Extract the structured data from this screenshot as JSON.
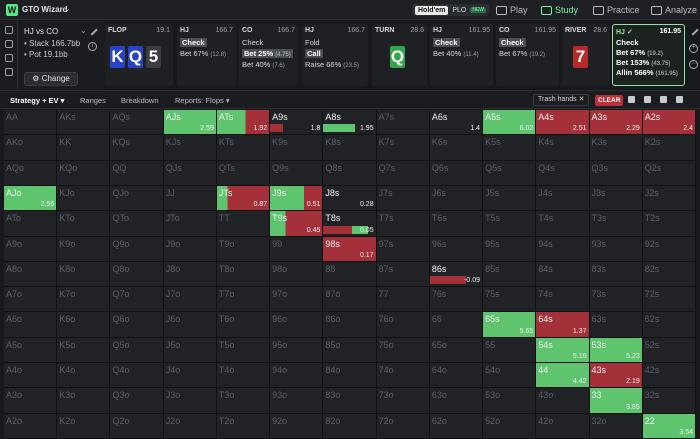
{
  "app": {
    "brand": "GTO Wizard"
  },
  "top_nav": {
    "game_modes": [
      "Hold'em",
      "PLO"
    ],
    "new_badge": "NEW",
    "tabs": [
      {
        "label": "Play",
        "active": false
      },
      {
        "label": "Study",
        "active": true
      },
      {
        "label": "Practice",
        "active": false
      },
      {
        "label": "Analyze",
        "active": false
      }
    ]
  },
  "spot": {
    "title": "HJ vs CO",
    "stack": "• Stack 166.7bb",
    "pot": "• Pot 19.1bb",
    "change_label": "Change"
  },
  "actions": {
    "flop": {
      "label": "FLOP",
      "pot": "19.1",
      "cards": [
        "K",
        "Q",
        "5"
      ]
    },
    "hj1": {
      "pos": "HJ",
      "stack": "166.7",
      "items": [
        [
          "Check",
          ""
        ],
        [
          "Bet 67%",
          "(12.8)"
        ]
      ]
    },
    "co1": {
      "pos": "CO",
      "stack": "166.7",
      "items": [
        [
          "Check",
          ""
        ],
        [
          "Bet 25%",
          "(4.75)"
        ],
        [
          "Bet 40%",
          "(7.6)"
        ]
      ]
    },
    "hj2": {
      "pos": "HJ",
      "stack": "166.7",
      "items": [
        [
          "Fold",
          ""
        ],
        [
          "Call",
          ""
        ],
        [
          "Raise 66%",
          "(23.5)"
        ]
      ]
    },
    "turn": {
      "label": "TURN",
      "pot": "28.6",
      "card": "Q"
    },
    "hj3": {
      "pos": "HJ",
      "stack": "161.95",
      "items": [
        [
          "Check",
          ""
        ],
        [
          "Bet 40%",
          "(11.4)"
        ]
      ]
    },
    "co2": {
      "pos": "CO",
      "stack": "161.95",
      "items": [
        [
          "Check",
          ""
        ],
        [
          "Bet 67%",
          "(19.2)"
        ]
      ]
    },
    "river": {
      "label": "RIVER",
      "pot": "28.6",
      "card": "7"
    },
    "hj4": {
      "pos": "HJ ✓",
      "stack": "161.95",
      "items": [
        [
          "Check",
          ""
        ],
        [
          "Bet 67%",
          "(19.2)"
        ],
        [
          "Bet 153%",
          "(43.75)"
        ],
        [
          "Allin 566%",
          "(161.95)"
        ]
      ]
    }
  },
  "tabs": {
    "strategy": "Strategy + EV ▾",
    "ranges": "Ranges",
    "breakdown": "Breakdown",
    "reports": "Reports: Flops ▾",
    "trash": "Trash hands  ✕",
    "clear": "CLEAR"
  },
  "colors": {
    "accent": "#7ef0a8",
    "green": "#5ec46e",
    "red": "#a4303a",
    "card_blue": "#2744c8",
    "card_green": "#2fa84a",
    "card_red": "#b72a2a"
  },
  "grid": {
    "ranks": [
      "A",
      "K",
      "Q",
      "J",
      "T",
      "9",
      "8",
      "7",
      "6",
      "5",
      "4",
      "3",
      "2"
    ],
    "hands": {
      "AJs": {
        "ev": "2.59",
        "g": 1.0,
        "r": 0
      },
      "ATs": {
        "ev": "1.92",
        "g": 0.55,
        "r": 0.45
      },
      "A9s": {
        "ev": "1.8",
        "g": 0.0,
        "r": 0.25
      },
      "A8s": {
        "ev": "1.95",
        "g": 0.6,
        "r": 0.0
      },
      "A6s": {
        "ev": "1.4",
        "g": 0.0,
        "r": 0.0
      },
      "A5s": {
        "ev": "6.02",
        "g": 1.0,
        "r": 0
      },
      "A4s": {
        "ev": "2.51",
        "g": 0.0,
        "r": 1.0
      },
      "A3s": {
        "ev": "2.29",
        "g": 0.0,
        "r": 1.0
      },
      "A2s": {
        "ev": "2.4",
        "g": 0.0,
        "r": 1.0
      },
      "AJo": {
        "ev": "2.56",
        "g": 1.0,
        "r": 0
      },
      "JTs": {
        "ev": "0.87",
        "g": 0.2,
        "r": 0.8
      },
      "J9s": {
        "ev": "0.51",
        "g": 0.65,
        "r": 0.35
      },
      "J8s": {
        "ev": "0.28",
        "g": 0.0,
        "r": 0.0
      },
      "T9s": {
        "ev": "0.45",
        "g": 0.3,
        "r": 0.7
      },
      "T8s": {
        "ev": "0.05",
        "g": 0.3,
        "r": 0.55
      },
      "98s": {
        "ev": "0.17",
        "g": 0.0,
        "r": 1.0
      },
      "86s": {
        "ev": "-0.09",
        "g": 0.0,
        "r": 0.7
      },
      "65s": {
        "ev": "5.65",
        "g": 1.0,
        "r": 0
      },
      "64s": {
        "ev": "1.37",
        "g": 0.0,
        "r": 1.0
      },
      "54s": {
        "ev": "5.16",
        "g": 1.0,
        "r": 0
      },
      "53s": {
        "ev": "5.23",
        "g": 1.0,
        "r": 0
      },
      "44": {
        "ev": "4.42",
        "g": 1.0,
        "r": 0
      },
      "43s": {
        "ev": "2.19",
        "g": 0.0,
        "r": 1.0
      },
      "33": {
        "ev": "3.85",
        "g": 1.0,
        "r": 0
      },
      "22": {
        "ev": "3.54",
        "g": 1.0,
        "r": 0
      }
    }
  }
}
